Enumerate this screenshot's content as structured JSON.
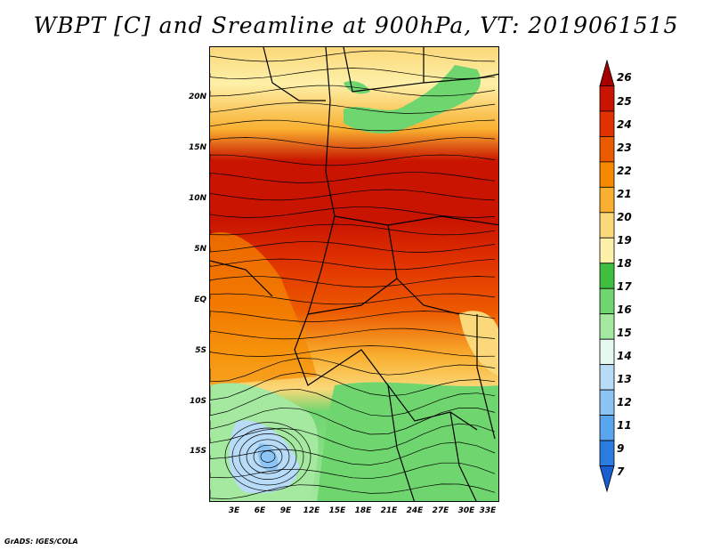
{
  "title": "WBPT [C] and Sreamline at 900hPa, VT: 2019061515",
  "credit": "GrADS: IGES/COLA",
  "lat_ticks": [
    "20N",
    "15N",
    "10N",
    "5N",
    "EQ",
    "5S",
    "10S",
    "15S"
  ],
  "lon_ticks": [
    "3E",
    "6E",
    "9E",
    "12E",
    "15E",
    "18E",
    "21E",
    "24E",
    "27E",
    "30E",
    "33E"
  ],
  "colorbar": {
    "labels": [
      "26",
      "25",
      "24",
      "23",
      "22",
      "21",
      "20",
      "19",
      "18",
      "17",
      "16",
      "15",
      "14",
      "13",
      "12",
      "11",
      "9",
      "7"
    ],
    "colors": [
      "#a50000",
      "#c81400",
      "#e03200",
      "#ec5a00",
      "#f58a00",
      "#f9b030",
      "#fbd87a",
      "#fdf0a8",
      "#3fbe3f",
      "#6fd66f",
      "#a5e8a0",
      "#e6f8f0",
      "#b8dcf8",
      "#8cc4f6",
      "#5aa6ee",
      "#2a7ce0",
      "#1a5ed0"
    ]
  },
  "colors": {
    "hot": "#c81400",
    "warm": "#f58a00",
    "mild": "#fdf0a8",
    "cool": "#6fd66f",
    "cold": "#8cc4f6"
  }
}
